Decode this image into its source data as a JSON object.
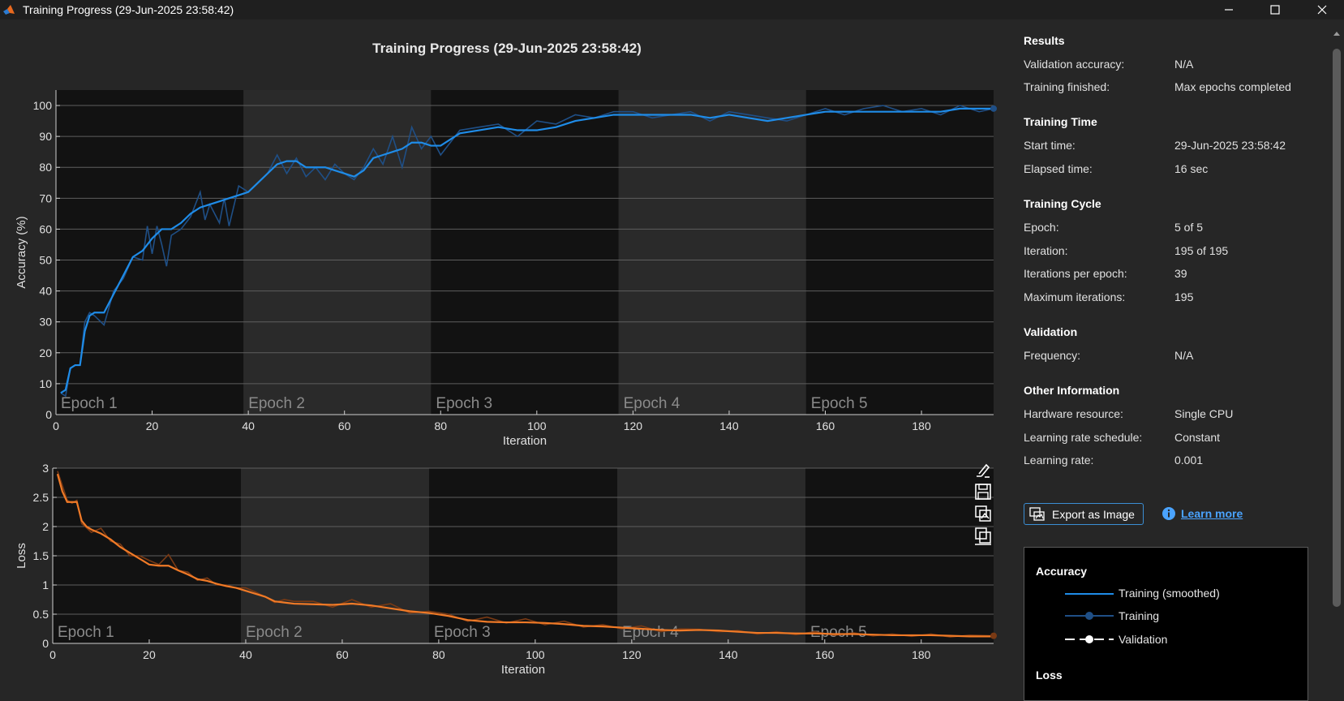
{
  "window": {
    "title": "Training Progress (29-Jun-2025 23:58:42)"
  },
  "plot_title": "Training Progress (29-Jun-2025 23:58:42)",
  "colors": {
    "accuracy": "#1f8ce8",
    "loss": "#f07a27",
    "epoch_dark": "#121212",
    "epoch_light": "#2a2a2a"
  },
  "icons": {
    "app": "matlab-logo-icon",
    "minimize": "minimize-icon",
    "maximize": "maximize-icon",
    "close": "close-icon",
    "export": "export-image-icon",
    "info": "info-icon"
  },
  "results": {
    "sections": [
      {
        "title": "Results",
        "rows": [
          {
            "label": "Validation accuracy:",
            "value": "N/A"
          },
          {
            "label": "Training finished:",
            "value": "Max epochs completed"
          }
        ]
      },
      {
        "title": "Training Time",
        "rows": [
          {
            "label": "Start time:",
            "value": "29-Jun-2025 23:58:42"
          },
          {
            "label": "Elapsed time:",
            "value": "16 sec"
          }
        ]
      },
      {
        "title": "Training Cycle",
        "rows": [
          {
            "label": "Epoch:",
            "value": "5 of 5"
          },
          {
            "label": "Iteration:",
            "value": "195 of 195"
          },
          {
            "label": "Iterations per epoch:",
            "value": "39"
          },
          {
            "label": "Maximum iterations:",
            "value": "195"
          }
        ]
      },
      {
        "title": "Validation",
        "rows": [
          {
            "label": "Frequency:",
            "value": "N/A"
          }
        ]
      },
      {
        "title": "Other Information",
        "rows": [
          {
            "label": "Hardware resource:",
            "value": "Single CPU"
          },
          {
            "label": "Learning rate schedule:",
            "value": "Constant"
          },
          {
            "label": "Learning rate:",
            "value": "0.001"
          }
        ]
      }
    ]
  },
  "buttons": {
    "export": "Export as Image",
    "learn_more": "Learn more"
  },
  "legend": {
    "accuracy_title": "Accuracy",
    "items": [
      "Training (smoothed)",
      "Training",
      "Validation"
    ],
    "loss_title": "Loss"
  },
  "axes_tools": [
    "brush-icon",
    "save-icon",
    "restore-view-icon",
    "copy-figure-icon"
  ],
  "chart_data": [
    {
      "type": "line",
      "ylabel": "Accuracy (%)",
      "xlabel": "Iteration",
      "xlim": [
        0,
        195
      ],
      "ylim": [
        0,
        105
      ],
      "xticks": [
        0,
        20,
        40,
        60,
        80,
        100,
        120,
        140,
        160,
        180
      ],
      "yticks": [
        0,
        10,
        20,
        30,
        40,
        50,
        60,
        70,
        80,
        90,
        100
      ],
      "grid": true,
      "epochs": [
        {
          "label": "Epoch 1",
          "start": 0,
          "end": 39
        },
        {
          "label": "Epoch 2",
          "start": 39,
          "end": 78
        },
        {
          "label": "Epoch 3",
          "start": 78,
          "end": 117
        },
        {
          "label": "Epoch 4",
          "start": 117,
          "end": 156
        },
        {
          "label": "Epoch 5",
          "start": 156,
          "end": 195
        }
      ],
      "series": [
        {
          "name": "Training (smoothed)",
          "x": [
            1,
            2,
            3,
            4,
            5,
            6,
            7,
            8,
            10,
            12,
            14,
            16,
            18,
            20,
            22,
            24,
            26,
            28,
            30,
            32,
            34,
            36,
            38,
            40,
            42,
            44,
            46,
            48,
            50,
            52,
            54,
            56,
            58,
            60,
            62,
            64,
            66,
            68,
            70,
            72,
            74,
            76,
            78,
            80,
            84,
            88,
            92,
            96,
            100,
            104,
            108,
            112,
            116,
            120,
            124,
            128,
            132,
            136,
            140,
            144,
            148,
            152,
            156,
            160,
            164,
            168,
            172,
            176,
            180,
            184,
            188,
            192,
            195
          ],
          "y": [
            7,
            8,
            15,
            16,
            16,
            27,
            32,
            33,
            33,
            39,
            45,
            51,
            53,
            57,
            60,
            60,
            62,
            65,
            67,
            68,
            69,
            70,
            71,
            72,
            75,
            78,
            81,
            82,
            82,
            80,
            80,
            80,
            79,
            78,
            77,
            79,
            83,
            84,
            85,
            86,
            88,
            88,
            87,
            87,
            91,
            92,
            93,
            92,
            92,
            93,
            95,
            96,
            97,
            97,
            97,
            97,
            97,
            96,
            97,
            96,
            95,
            96,
            97,
            98,
            98,
            98,
            98,
            98,
            98,
            98,
            99,
            99,
            99
          ]
        },
        {
          "name": "Training",
          "x": [
            1,
            2,
            3,
            4,
            5,
            6,
            7,
            8,
            10,
            12,
            14,
            16,
            18,
            19,
            20,
            21,
            22,
            23,
            24,
            26,
            28,
            30,
            31,
            32,
            34,
            35,
            36,
            38,
            40,
            42,
            44,
            46,
            48,
            50,
            52,
            54,
            56,
            58,
            60,
            62,
            64,
            66,
            68,
            70,
            72,
            74,
            76,
            78,
            80,
            84,
            88,
            92,
            96,
            100,
            104,
            108,
            112,
            116,
            120,
            124,
            128,
            132,
            136,
            140,
            144,
            148,
            152,
            156,
            160,
            164,
            168,
            172,
            176,
            180,
            184,
            188,
            192,
            195
          ],
          "y": [
            7,
            6,
            15,
            16,
            16,
            30,
            33,
            32,
            29,
            40,
            44,
            51,
            50,
            61,
            52,
            61,
            55,
            48,
            58,
            60,
            64,
            72,
            63,
            68,
            62,
            70,
            61,
            74,
            72,
            75,
            78,
            84,
            78,
            83,
            77,
            80,
            76,
            81,
            78,
            76,
            80,
            86,
            81,
            90,
            80,
            93,
            86,
            90,
            84,
            92,
            93,
            94,
            90,
            95,
            94,
            97,
            96,
            98,
            98,
            96,
            97,
            98,
            95,
            98,
            97,
            96,
            95,
            97,
            99,
            97,
            99,
            100,
            98,
            99,
            97,
            100,
            98,
            99
          ]
        }
      ]
    },
    {
      "type": "line",
      "ylabel": "Loss",
      "xlabel": "Iteration",
      "xlim": [
        0,
        195
      ],
      "ylim": [
        0,
        3
      ],
      "xticks": [
        0,
        20,
        40,
        60,
        80,
        100,
        120,
        140,
        160,
        180
      ],
      "yticks": [
        0,
        0.5,
        1,
        1.5,
        2,
        2.5,
        3
      ],
      "grid": true,
      "epochs": [
        {
          "label": "Epoch 1",
          "start": 0,
          "end": 39
        },
        {
          "label": "Epoch 2",
          "start": 39,
          "end": 78
        },
        {
          "label": "Epoch 3",
          "start": 78,
          "end": 117
        },
        {
          "label": "Epoch 4",
          "start": 117,
          "end": 156
        },
        {
          "label": "Epoch 5",
          "start": 156,
          "end": 195
        }
      ],
      "series": [
        {
          "name": "Training (smoothed)",
          "x": [
            1,
            2,
            3,
            4,
            5,
            6,
            7,
            8,
            10,
            12,
            14,
            16,
            18,
            20,
            22,
            24,
            26,
            28,
            30,
            32,
            34,
            36,
            38,
            40,
            42,
            44,
            46,
            48,
            50,
            54,
            58,
            62,
            66,
            70,
            74,
            78,
            82,
            86,
            90,
            94,
            98,
            102,
            106,
            110,
            114,
            118,
            122,
            126,
            130,
            134,
            138,
            142,
            146,
            150,
            154,
            158,
            162,
            166,
            170,
            174,
            178,
            182,
            186,
            190,
            195
          ],
          "y": [
            2.9,
            2.6,
            2.42,
            2.42,
            2.42,
            2.1,
            2.0,
            1.95,
            1.88,
            1.78,
            1.65,
            1.55,
            1.45,
            1.35,
            1.33,
            1.33,
            1.25,
            1.18,
            1.1,
            1.07,
            1.02,
            0.98,
            0.95,
            0.9,
            0.85,
            0.8,
            0.72,
            0.7,
            0.68,
            0.67,
            0.66,
            0.68,
            0.65,
            0.6,
            0.55,
            0.52,
            0.47,
            0.4,
            0.37,
            0.36,
            0.36,
            0.35,
            0.33,
            0.3,
            0.29,
            0.27,
            0.25,
            0.23,
            0.22,
            0.23,
            0.22,
            0.2,
            0.18,
            0.18,
            0.17,
            0.17,
            0.16,
            0.16,
            0.15,
            0.14,
            0.14,
            0.14,
            0.13,
            0.12,
            0.12
          ]
        },
        {
          "name": "Training",
          "x": [
            1,
            2,
            3,
            4,
            5,
            6,
            7,
            8,
            10,
            12,
            14,
            16,
            18,
            20,
            22,
            24,
            26,
            28,
            30,
            32,
            34,
            36,
            38,
            40,
            42,
            44,
            46,
            48,
            50,
            54,
            58,
            62,
            66,
            70,
            74,
            78,
            82,
            86,
            90,
            94,
            98,
            102,
            106,
            110,
            114,
            118,
            122,
            126,
            130,
            134,
            138,
            142,
            146,
            150,
            154,
            158,
            162,
            166,
            170,
            174,
            178,
            182,
            186,
            190,
            195
          ],
          "y": [
            2.95,
            2.7,
            2.45,
            2.4,
            2.45,
            2.05,
            1.98,
            1.9,
            1.97,
            1.75,
            1.7,
            1.5,
            1.5,
            1.42,
            1.35,
            1.52,
            1.25,
            1.22,
            1.08,
            1.12,
            1.0,
            1.0,
            0.95,
            0.95,
            0.88,
            0.8,
            0.7,
            0.75,
            0.72,
            0.72,
            0.62,
            0.75,
            0.62,
            0.68,
            0.52,
            0.55,
            0.5,
            0.38,
            0.45,
            0.35,
            0.42,
            0.32,
            0.38,
            0.28,
            0.32,
            0.25,
            0.3,
            0.2,
            0.25,
            0.24,
            0.2,
            0.22,
            0.16,
            0.2,
            0.15,
            0.2,
            0.14,
            0.18,
            0.13,
            0.16,
            0.12,
            0.16,
            0.11,
            0.14,
            0.13
          ]
        }
      ]
    }
  ]
}
